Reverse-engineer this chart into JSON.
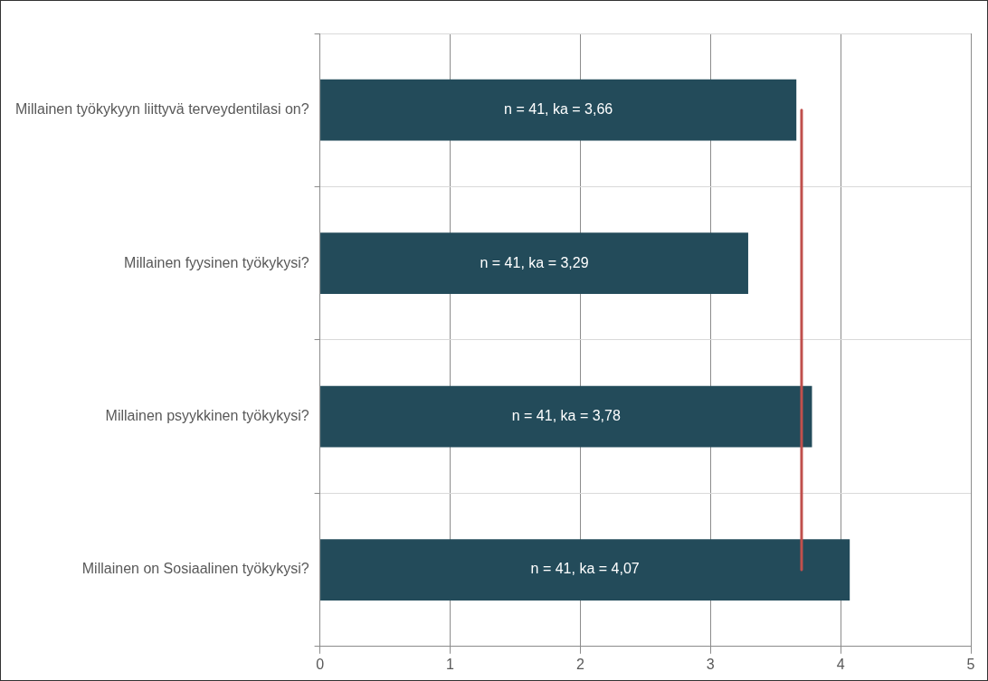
{
  "chart_data": {
    "type": "bar",
    "orientation": "horizontal",
    "categories": [
      "Millainen työkykyyn liittyvä terveydentilasi on?",
      "Millainen fyysinen työkykysi?",
      "Millainen psyykkinen työkykysi?",
      "Millainen on Sosiaalinen työkykysi?"
    ],
    "values": [
      3.66,
      3.29,
      3.78,
      4.07
    ],
    "value_labels": [
      "n = 41, ka = 3,66",
      "n = 41, ka = 3,29",
      "n = 41, ka = 3,78",
      "n = 41, ka = 4,07"
    ],
    "color": "#234b5a",
    "xlim": [
      0,
      5
    ],
    "xticks": [
      0,
      1,
      2,
      3,
      4,
      5
    ],
    "ref_lines": [
      {
        "axis": "x",
        "value": 3.7,
        "color": "#c0504d"
      }
    ],
    "grid": true,
    "legend": false
  }
}
